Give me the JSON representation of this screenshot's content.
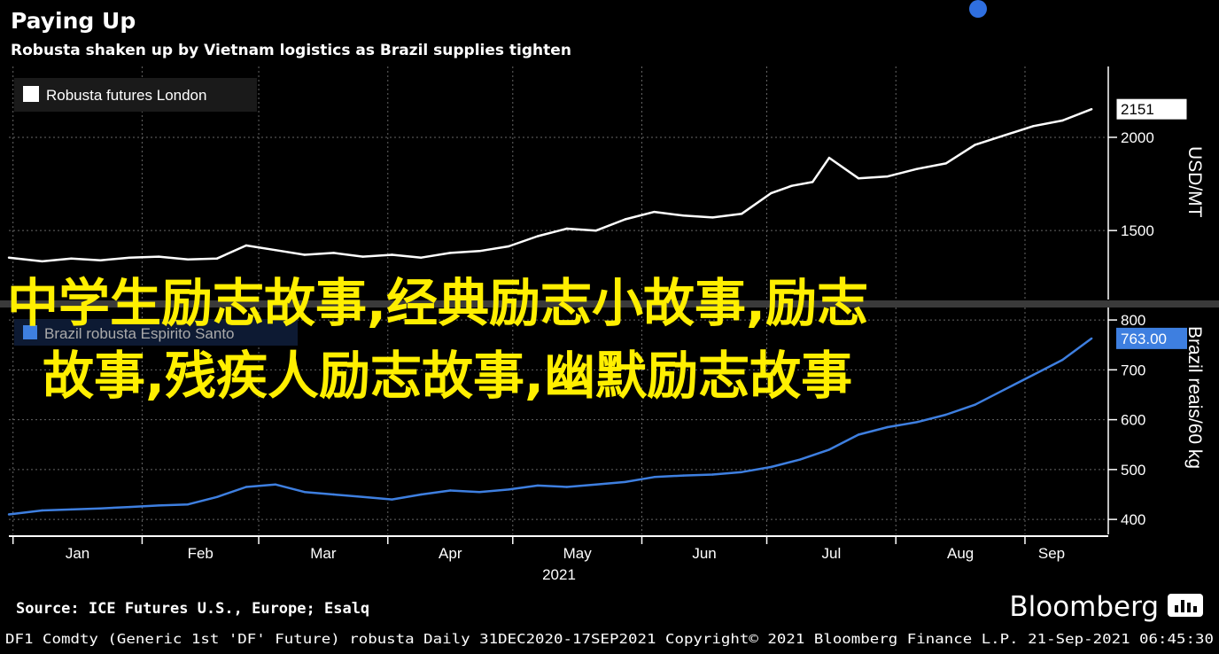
{
  "header": {
    "title": "Paying Up",
    "subtitle": "Robusta shaken up by Vietnam logistics as Brazil supplies tighten"
  },
  "chart_data": [
    {
      "type": "line",
      "legend": "Robusta futures London",
      "series_color": "#ffffff",
      "yaxis_label": "USD/MT",
      "yaxis_side": "right",
      "yticks": [
        1500,
        2000
      ],
      "ylim": [
        1130,
        2380
      ],
      "last_value_label": "2151",
      "x": [
        "2020-12-31",
        "2021-01-08",
        "2021-01-15",
        "2021-01-22",
        "2021-01-29",
        "2021-02-05",
        "2021-02-12",
        "2021-02-19",
        "2021-02-26",
        "2021-03-05",
        "2021-03-12",
        "2021-03-19",
        "2021-03-26",
        "2021-04-02",
        "2021-04-09",
        "2021-04-16",
        "2021-04-23",
        "2021-04-30",
        "2021-05-07",
        "2021-05-14",
        "2021-05-21",
        "2021-05-28",
        "2021-06-04",
        "2021-06-11",
        "2021-06-18",
        "2021-06-25",
        "2021-07-02",
        "2021-07-07",
        "2021-07-12",
        "2021-07-16",
        "2021-07-23",
        "2021-07-30",
        "2021-08-06",
        "2021-08-13",
        "2021-08-20",
        "2021-08-27",
        "2021-09-03",
        "2021-09-10",
        "2021-09-17"
      ],
      "y": [
        1355,
        1335,
        1350,
        1340,
        1355,
        1360,
        1345,
        1350,
        1420,
        1395,
        1370,
        1380,
        1360,
        1370,
        1355,
        1380,
        1390,
        1415,
        1470,
        1510,
        1500,
        1560,
        1600,
        1580,
        1570,
        1590,
        1700,
        1740,
        1760,
        1890,
        1780,
        1790,
        1830,
        1860,
        1960,
        2010,
        2060,
        2090,
        2151
      ]
    },
    {
      "type": "line",
      "legend": "Brazil robusta Espirito Santo",
      "series_color": "#3e7fe0",
      "yaxis_label": "Brazil reais/60 kg",
      "yaxis_side": "right",
      "yticks": [
        400,
        500,
        600,
        700,
        800
      ],
      "ylim": [
        370,
        825
      ],
      "last_value_label": "763.00",
      "x": [
        "2020-12-31",
        "2021-01-08",
        "2021-01-15",
        "2021-01-22",
        "2021-01-29",
        "2021-02-05",
        "2021-02-12",
        "2021-02-19",
        "2021-02-26",
        "2021-03-05",
        "2021-03-12",
        "2021-03-19",
        "2021-03-26",
        "2021-04-02",
        "2021-04-09",
        "2021-04-16",
        "2021-04-23",
        "2021-04-30",
        "2021-05-07",
        "2021-05-14",
        "2021-05-21",
        "2021-05-28",
        "2021-06-04",
        "2021-06-11",
        "2021-06-18",
        "2021-06-25",
        "2021-07-02",
        "2021-07-09",
        "2021-07-16",
        "2021-07-23",
        "2021-07-30",
        "2021-08-06",
        "2021-08-13",
        "2021-08-20",
        "2021-08-27",
        "2021-09-03",
        "2021-09-10",
        "2021-09-17"
      ],
      "y": [
        410,
        418,
        420,
        422,
        425,
        428,
        430,
        445,
        465,
        470,
        455,
        450,
        445,
        440,
        450,
        458,
        455,
        460,
        468,
        465,
        470,
        475,
        485,
        488,
        490,
        495,
        505,
        520,
        540,
        570,
        585,
        595,
        610,
        630,
        660,
        690,
        720,
        763
      ]
    }
  ],
  "xaxis": {
    "months": [
      "Jan",
      "Feb",
      "Mar",
      "Apr",
      "May",
      "Jun",
      "Jul",
      "Aug",
      "Sep"
    ],
    "month_starts": [
      "2021-01-01",
      "2021-02-01",
      "2021-03-01",
      "2021-04-01",
      "2021-05-01",
      "2021-06-01",
      "2021-07-01",
      "2021-08-01",
      "2021-09-01"
    ],
    "year_label": "2021",
    "range": [
      "2020-12-31",
      "2021-09-21"
    ]
  },
  "overlay_text": {
    "line1": "中学生励志故事,经典励志小故事,励志",
    "line2": "故事,残疾人励志故事,幽默励志故事"
  },
  "footer": {
    "source": "Source: ICE Futures U.S., Europe; Esalq",
    "brand": "Bloomberg",
    "meta": "DF1 Comdty (Generic 1st 'DF' Future) robusta  Daily 31DEC2020-17SEP2021  Copyright© 2021 Bloomberg Finance L.P.  21-Sep-2021 06:45:30"
  }
}
